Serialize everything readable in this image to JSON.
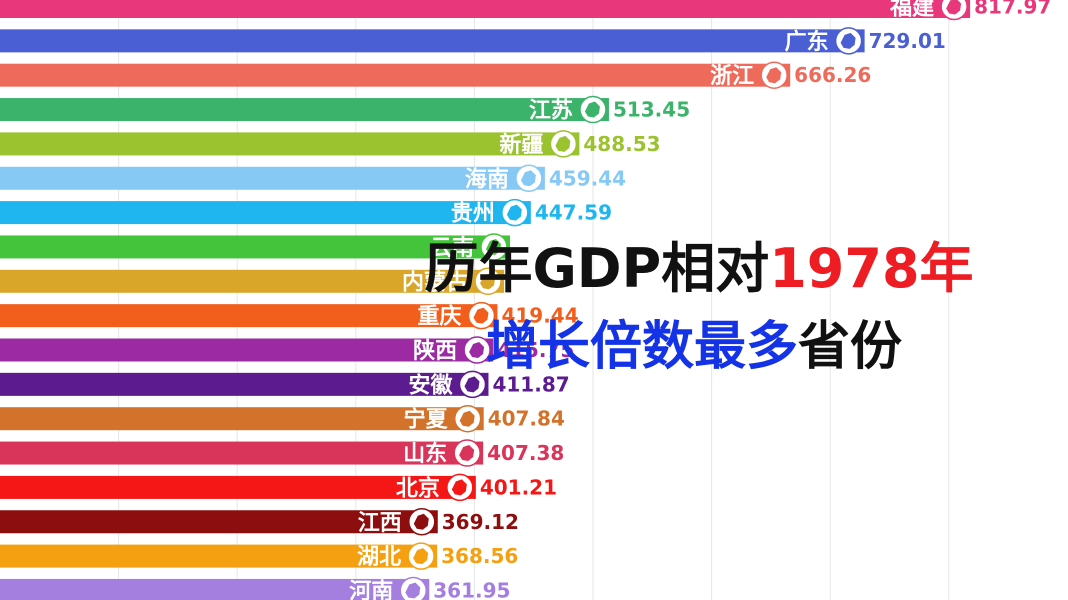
{
  "title": {
    "line1_a": "历年GDP相对",
    "line1_b": "1978年",
    "line2_a": "增长倍数最多",
    "line2_b": "省份"
  },
  "colors": {
    "title_black": "#111111",
    "title_red": "#ee1d23",
    "title_blue": "#1533e6",
    "grid": "#e6e6e6"
  },
  "chart_data": {
    "type": "bar",
    "orientation": "horizontal",
    "grid": true,
    "categories": [
      "福建",
      "广东",
      "浙江",
      "江苏",
      "新疆",
      "海南",
      "贵州",
      "云南",
      "内蒙古",
      "重庆",
      "陕西",
      "安徽",
      "宁夏",
      "山东",
      "北京",
      "江西",
      "湖北",
      "河南"
    ],
    "values": [
      817.97,
      729.01,
      666.26,
      513.45,
      488.53,
      459.44,
      447.59,
      430,
      425,
      419.44,
      415.75,
      411.87,
      407.84,
      407.38,
      401.21,
      369.12,
      368.56,
      361.95
    ],
    "value_labels": [
      "817.97",
      "729.01",
      "666.26",
      "513.45",
      "488.53",
      "459.44",
      "447.59",
      "",
      "",
      "419.44",
      "415.75",
      "411.87",
      "407.84",
      "407.38",
      "401.21",
      "369.12",
      "368.56",
      "361.95"
    ],
    "bar_colors": [
      "#e8377a",
      "#4a5fd3",
      "#ee6b5b",
      "#3bb36a",
      "#9bc22f",
      "#86c9f5",
      "#1fb5ee",
      "#44c43a",
      "#d9a62a",
      "#f25e1c",
      "#9b2aa3",
      "#5c1b8e",
      "#d3732b",
      "#d9355a",
      "#f51616",
      "#8c0e0e",
      "#f5a010",
      "#a47fe0"
    ],
    "xlim": [
      0,
      830
    ]
  }
}
